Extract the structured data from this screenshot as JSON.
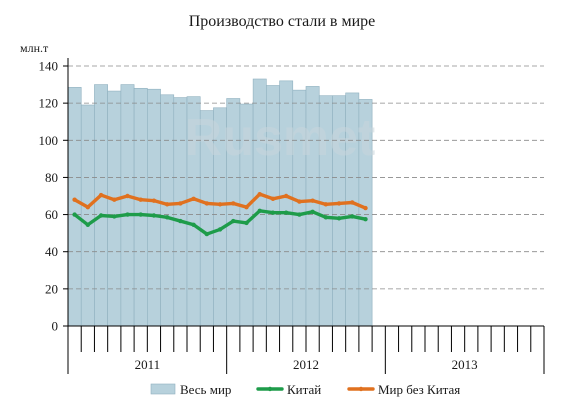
{
  "chart_data": {
    "type": "bar+line",
    "title": "Производство стали в мире",
    "ylabel": "млн.т",
    "ylim": [
      0,
      140
    ],
    "yticks": [
      0,
      20,
      40,
      60,
      80,
      100,
      120,
      140
    ],
    "grid": true,
    "legend_position": "bottom",
    "year_labels": [
      "2011",
      "2012",
      "2013"
    ],
    "months_per_year": 12,
    "watermark": "Rusmet",
    "series": [
      {
        "name": "Весь мир",
        "kind": "bar",
        "color": "#b7d1dc",
        "values": [
          128.5,
          119,
          130,
          126.5,
          130,
          128,
          127.5,
          124.5,
          123,
          123.5,
          116,
          117.5,
          122.5,
          119.5,
          133,
          129.5,
          132,
          127,
          129,
          124,
          124,
          125.5,
          122
        ]
      },
      {
        "name": "Китай",
        "kind": "line",
        "color": "#1e9c4a",
        "values": [
          60,
          54.5,
          59.5,
          59,
          60,
          60,
          59.5,
          58.5,
          56.5,
          54.5,
          49.5,
          52,
          56.5,
          55.5,
          62,
          61,
          61,
          60,
          61.5,
          58.5,
          58,
          59,
          57.5
        ]
      },
      {
        "name": "Мир без Китая",
        "kind": "line",
        "color": "#e0711f",
        "values": [
          68,
          64,
          70.5,
          68,
          70,
          68,
          67.5,
          65.5,
          66,
          68.5,
          66,
          65.5,
          66,
          64,
          71,
          68.5,
          70,
          67,
          67.5,
          65.5,
          66,
          66.5,
          63.5
        ]
      }
    ]
  }
}
